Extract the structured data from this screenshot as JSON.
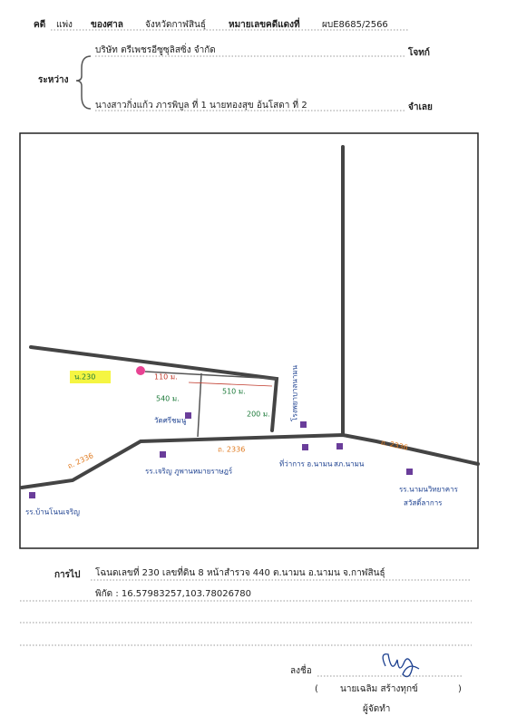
{
  "header": {
    "case_label": "คดี",
    "case_type": "แพ่ง",
    "court_label": "ของศาล",
    "court": "จังหวัดกาฬสินธุ์",
    "case_no_label": "หมายเลขคดีแดงที่",
    "case_no": "ผบE8685/2566"
  },
  "parties": {
    "between": "ระหว่าง",
    "plaintiff": "บริษัท ตรีเพชรอีซูซุลิสซิ่ง จำกัด",
    "plaintiff_label": "โจทก์",
    "defendant": "นางสาวกิ่งแก้ว ภารพิบูล ที่ 1 นายทองสุข อ้นโสดา ที่ 2",
    "defendant_label": "จำเลย"
  },
  "map": {
    "labels": [
      "น.230",
      "110 ม.",
      "510 ม.",
      "540 ม.",
      "200 ม.",
      "วัดศรีชมนู",
      "โรงพยาบาลนามน",
      "ถ. 2336",
      "ถ. 2336",
      "ถ. 2336",
      "รร.เจริญ ภูพานหมายราษฎร์",
      "ที่ว่าการ อ.นามน",
      "สภ.นามน",
      "รร.นามนวิทยาคาร",
      "สวัสดิ์ลาการ",
      "รร.บ้านโนนเจริญ"
    ]
  },
  "footer": {
    "route_label": "การไป",
    "route": "โฉนดเลขที่ 230 เลขที่ดิน 8 หน้าสำรวจ 440 ต.นามน อ.นามน จ.กาฬสินธุ์",
    "coords": "พิกัด : 16.57983257,103.78026780",
    "sign_label": "ลงชื่อ",
    "open": "(",
    "signer": "นายเฉลิม สร้างทุกข์",
    "close": ")",
    "role": "ผู้จัดทำ"
  }
}
